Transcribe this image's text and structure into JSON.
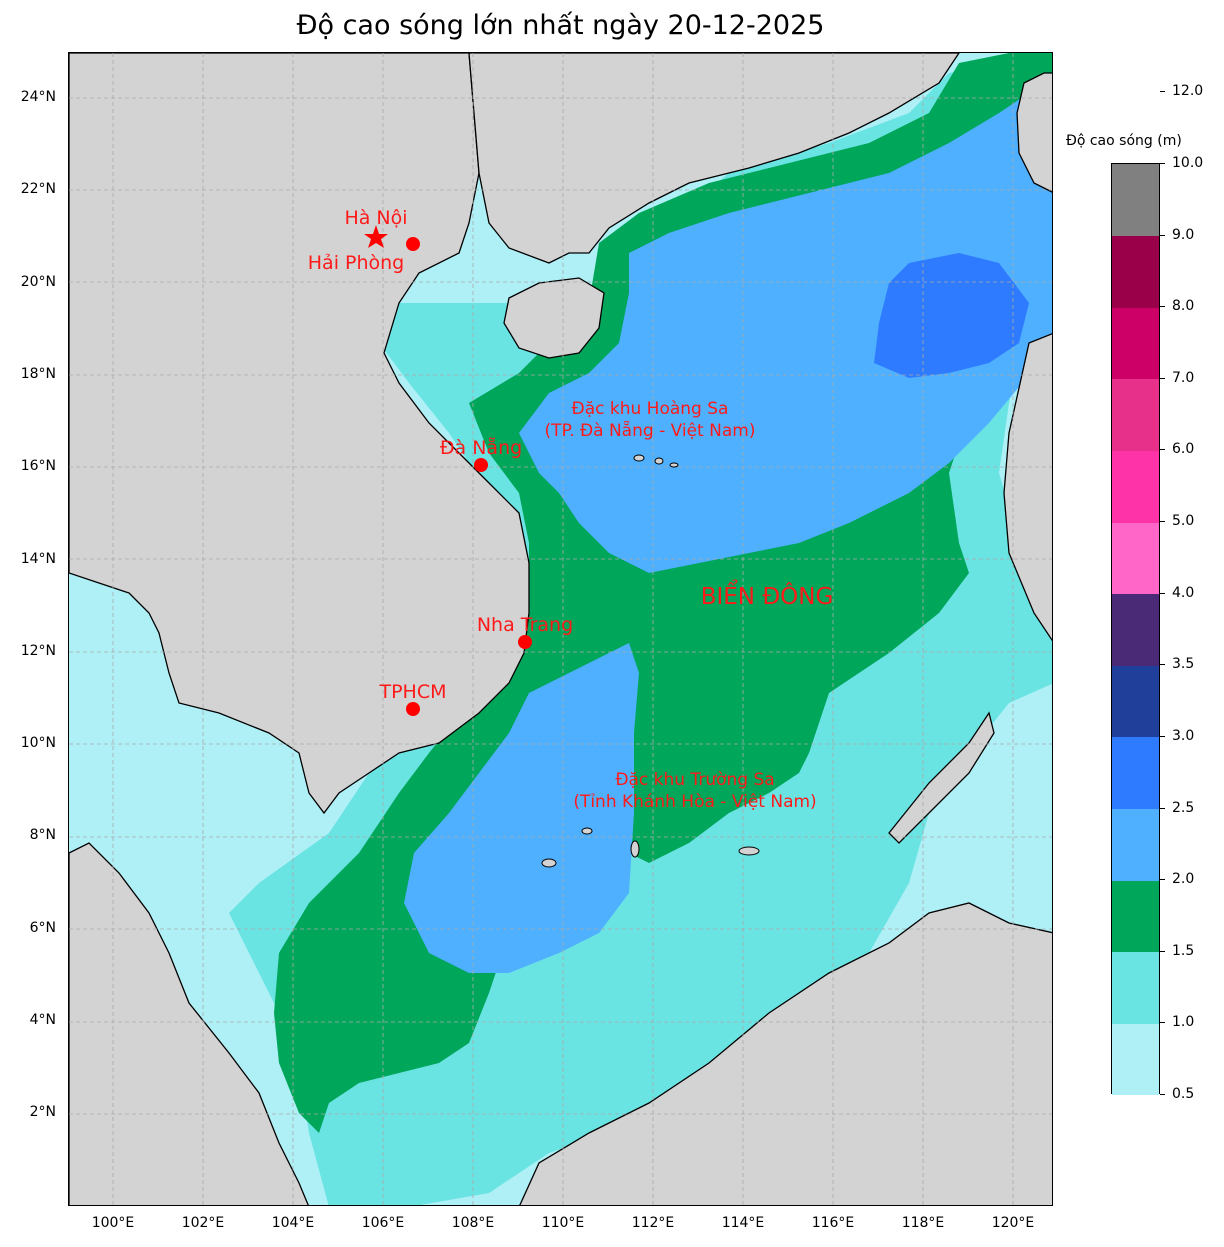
{
  "title": "Độ cao sóng lớn nhất ngày 20-12-2025",
  "colors": {
    "land": "#d3d3d3",
    "grid": "#aaaaaa",
    "marker": "#ff0000",
    "label": "#ff1a1a"
  },
  "latitude_labels": [
    "24°N",
    "22°N",
    "20°N",
    "18°N",
    "16°N",
    "14°N",
    "12°N",
    "10°N",
    "8°N",
    "6°N",
    "4°N",
    "2°N"
  ],
  "longitude_labels": [
    "100°E",
    "102°E",
    "104°E",
    "106°E",
    "108°E",
    "110°E",
    "112°E",
    "114°E",
    "116°E",
    "118°E",
    "120°E"
  ],
  "cities": [
    {
      "name": "Hà Nội",
      "marker": "star-icon"
    },
    {
      "name": "Hải Phòng",
      "marker": "dot-icon"
    },
    {
      "name": "Đà Nẵng",
      "marker": "dot-icon"
    },
    {
      "name": "Nha Trang",
      "marker": "dot-icon"
    },
    {
      "name": "TPHCM",
      "marker": "dot-icon"
    }
  ],
  "regions": {
    "hoang_sa_line1": "Đặc khu Hoàng Sa",
    "hoang_sa_line2": "(TP. Đà Nẵng - Việt Nam)",
    "truong_sa_line1": "Đặc khu Trường Sa",
    "truong_sa_line2": "(Tỉnh Khánh Hòa - Việt Nam)",
    "sea_name": "BIỂN ĐÔNG"
  },
  "colorbar": {
    "title": "Độ cao sóng (m)",
    "tick_labels": [
      "0.5",
      "1.0",
      "1.5",
      "2.0",
      "2.5",
      "3.0",
      "3.5",
      "4.0",
      "5.0",
      "6.0",
      "7.0",
      "8.0",
      "9.0",
      "10.0",
      "12.0"
    ],
    "colors": [
      "#aff0f7",
      "#6ae4e3",
      "#00a65a",
      "#4eb0ff",
      "#2f7bff",
      "#1f3f9a",
      "#4a2a76",
      "#ff66c8",
      "#ff33a8",
      "#e6308a",
      "#cc0066",
      "#990049",
      "#808080"
    ]
  }
}
